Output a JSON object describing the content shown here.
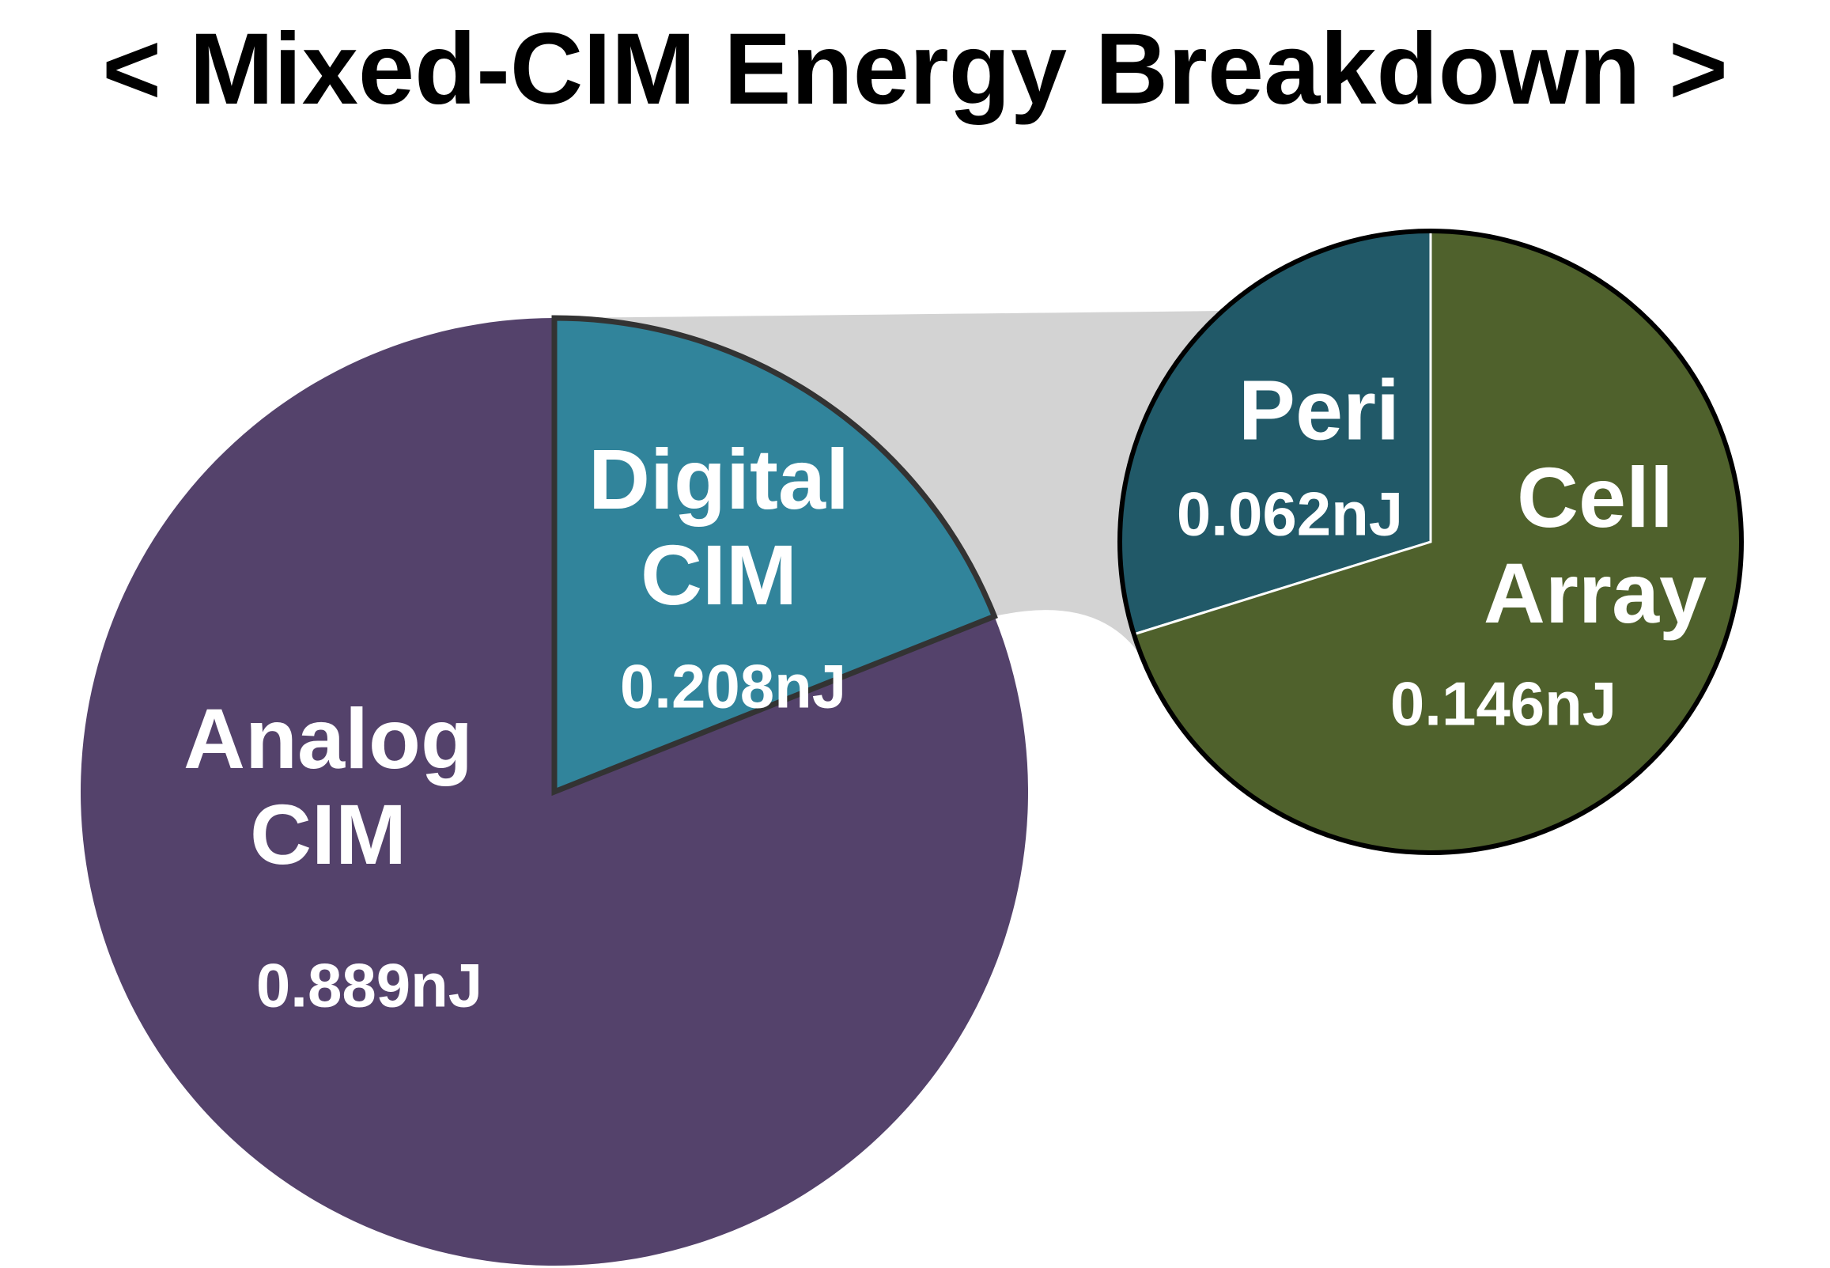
{
  "chart_data": {
    "type": "pie-of-pie",
    "title": "< Mixed-CIM Energy Breakdown >",
    "categories": [
      "Analog CIM",
      "Digital CIM"
    ],
    "values": [
      0.889,
      0.208
    ],
    "value_labels": [
      "0.889nJ",
      "0.208nJ"
    ],
    "colors": [
      "#54426b",
      "#31849b"
    ],
    "detail": {
      "categories": [
        "Peri",
        "Cell Array"
      ],
      "values": [
        0.062,
        0.146
      ],
      "value_labels": [
        "0.062nJ",
        "0.146nJ"
      ],
      "colors": [
        "#215968",
        "#4f612c"
      ]
    }
  }
}
